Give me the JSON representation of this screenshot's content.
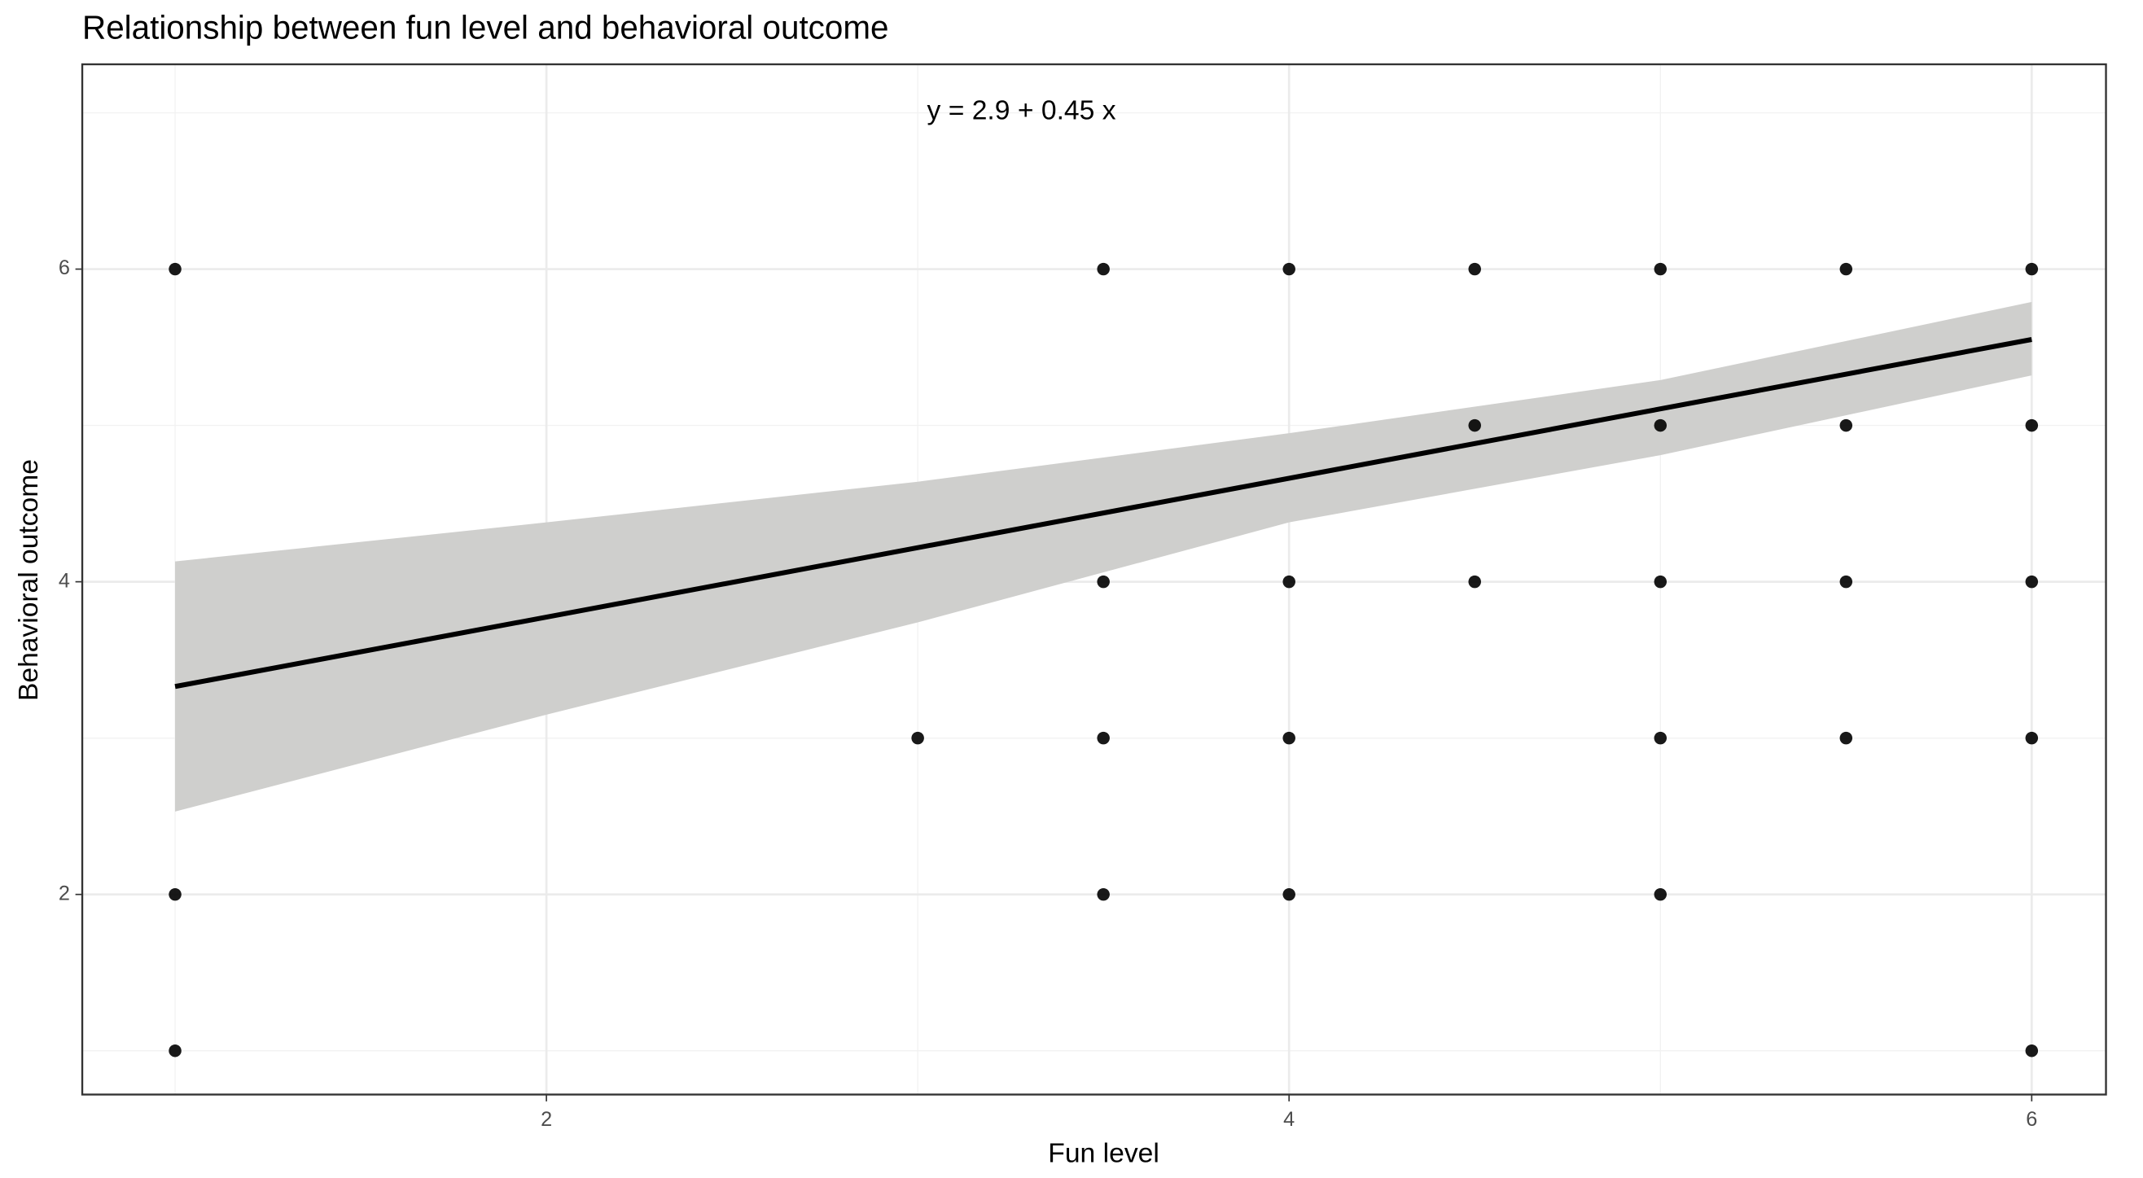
{
  "chart_data": {
    "type": "scatter",
    "title": "Relationship between fun level and behavioral outcome",
    "x_label": "Fun level",
    "y_label": "Behavioral outcome",
    "annotation": "y = 2.9 + 0.45 x",
    "points": {
      "color": "#000000",
      "x": [
        1,
        1,
        1,
        3,
        3.5,
        3.5,
        3.5,
        3.5,
        4,
        4,
        4,
        4,
        4.5,
        4.5,
        4.5,
        5,
        5,
        5,
        5,
        5,
        5.5,
        5.5,
        5.5,
        5.5,
        6,
        6,
        6,
        6,
        6
      ],
      "y": [
        6,
        2,
        1,
        3,
        6,
        4,
        3,
        2,
        6,
        4,
        3,
        2,
        6,
        5,
        4,
        6,
        5,
        4,
        3,
        2,
        6,
        5,
        4,
        3,
        6,
        5,
        4,
        3,
        1
      ]
    },
    "fit": {
      "color": "#000000",
      "x": [
        1,
        6
      ],
      "y": [
        3.33,
        5.55
      ]
    },
    "band": {
      "color": "#cfcfcd",
      "x": [
        1,
        2,
        3,
        4,
        5,
        6
      ],
      "lower": [
        2.53,
        3.15,
        3.74,
        4.38,
        4.81,
        5.32
      ],
      "upper": [
        4.13,
        4.38,
        4.64,
        4.95,
        5.29,
        5.79
      ]
    },
    "xlim": [
      0.75,
      6.2
    ],
    "ylim": [
      0.72,
      7.31
    ],
    "xticks": [
      2,
      4,
      6
    ],
    "yticks": [
      2,
      4,
      6
    ],
    "x_minor_grid": [
      1,
      3,
      5
    ],
    "y_minor_grid": [
      1,
      3,
      5,
      7
    ],
    "grid": true
  }
}
